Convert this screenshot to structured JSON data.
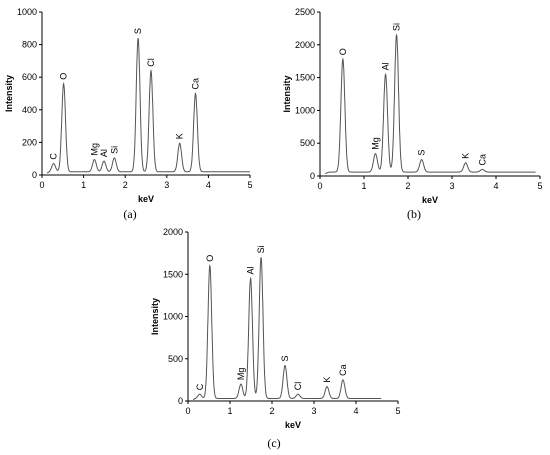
{
  "chart_data": [
    {
      "type": "line",
      "panel_label": "(a)",
      "xlabel": "keV",
      "ylabel": "Intensity",
      "xlim": [
        0,
        5
      ],
      "ylim": [
        0,
        1000
      ],
      "xticks": [
        0,
        1,
        2,
        3,
        4,
        5
      ],
      "yticks": [
        0,
        200,
        400,
        600,
        800,
        1000
      ],
      "baseline": 20,
      "x_end": 5.0,
      "peaks": [
        {
          "element": "C",
          "x": 0.28,
          "y": 70
        },
        {
          "element": "O",
          "x": 0.52,
          "y": 560
        },
        {
          "element": "Mg",
          "x": 1.26,
          "y": 95
        },
        {
          "element": "Al",
          "x": 1.49,
          "y": 85
        },
        {
          "element": "Si",
          "x": 1.74,
          "y": 105
        },
        {
          "element": "S",
          "x": 2.31,
          "y": 840
        },
        {
          "element": "Cl",
          "x": 2.62,
          "y": 640
        },
        {
          "element": "K",
          "x": 3.31,
          "y": 195
        },
        {
          "element": "Ca",
          "x": 3.69,
          "y": 500
        }
      ]
    },
    {
      "type": "line",
      "panel_label": "(b)",
      "xlabel": "keV",
      "ylabel": "Intensity",
      "xlim": [
        0,
        5
      ],
      "ylim": [
        0,
        2500
      ],
      "xticks": [
        0,
        1,
        2,
        3,
        4,
        5
      ],
      "yticks": [
        0,
        500,
        1000,
        1500,
        2000,
        2500
      ],
      "baseline": 60,
      "x_end": 4.9,
      "peaks": [
        {
          "element": "O",
          "x": 0.52,
          "y": 1780
        },
        {
          "element": "Mg",
          "x": 1.26,
          "y": 340
        },
        {
          "element": "Al",
          "x": 1.49,
          "y": 1550
        },
        {
          "element": "Si",
          "x": 1.74,
          "y": 2150
        },
        {
          "element": "S",
          "x": 2.31,
          "y": 250
        },
        {
          "element": "K",
          "x": 3.31,
          "y": 200
        },
        {
          "element": "Ca",
          "x": 3.69,
          "y": 100
        }
      ]
    },
    {
      "type": "line",
      "panel_label": "(c)",
      "xlabel": "keV",
      "ylabel": "Intensity",
      "xlim": [
        0,
        5
      ],
      "ylim": [
        0,
        2000
      ],
      "xticks": [
        0,
        1,
        2,
        3,
        4,
        5
      ],
      "yticks": [
        0,
        500,
        1000,
        1500,
        2000
      ],
      "baseline": 30,
      "x_end": 4.6,
      "peaks": [
        {
          "element": "C",
          "x": 0.28,
          "y": 80
        },
        {
          "element": "O",
          "x": 0.52,
          "y": 1600
        },
        {
          "element": "Mg",
          "x": 1.26,
          "y": 200
        },
        {
          "element": "Al",
          "x": 1.49,
          "y": 1450
        },
        {
          "element": "Si",
          "x": 1.74,
          "y": 1700
        },
        {
          "element": "S",
          "x": 2.31,
          "y": 420
        },
        {
          "element": "Cl",
          "x": 2.62,
          "y": 80
        },
        {
          "element": "K",
          "x": 3.31,
          "y": 170
        },
        {
          "element": "Ca",
          "x": 3.69,
          "y": 250
        }
      ]
    }
  ]
}
